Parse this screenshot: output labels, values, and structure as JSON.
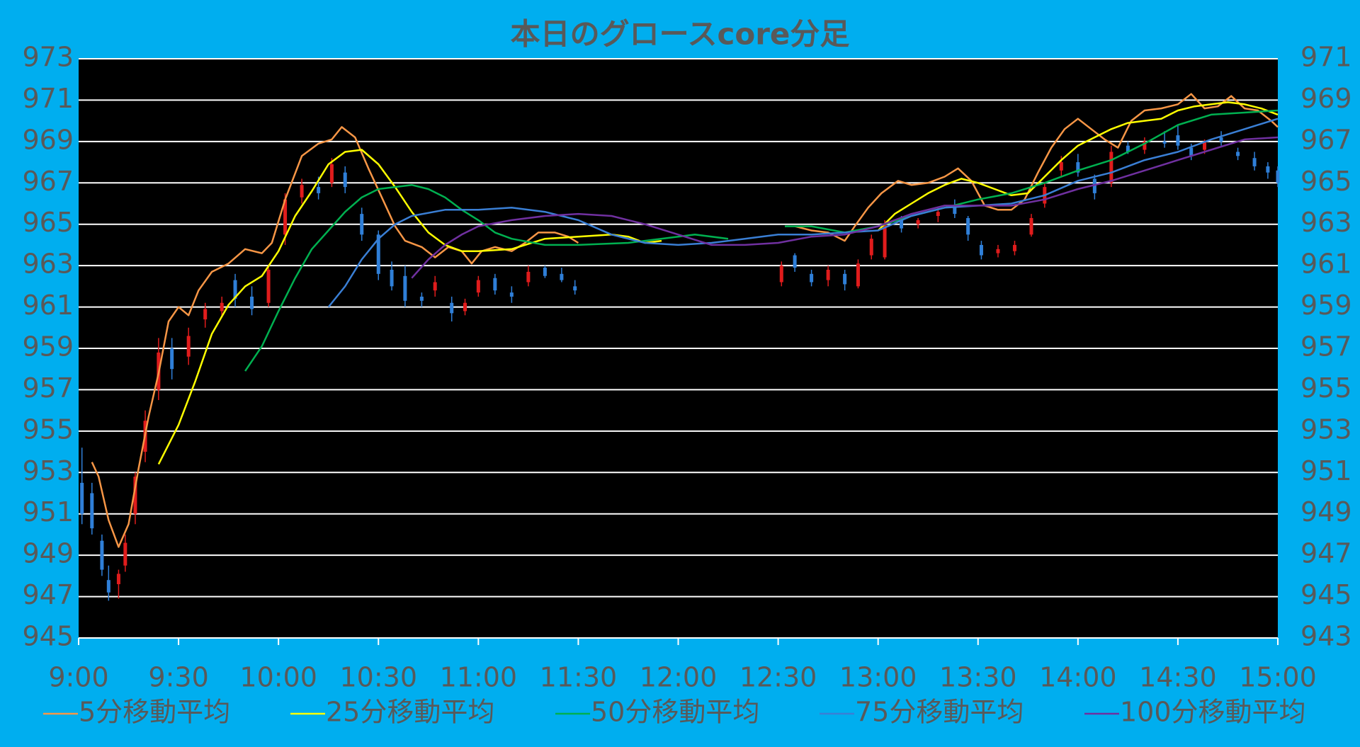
{
  "chart_data": {
    "type": "candlestick",
    "title": "本日のグロースcore分足",
    "xlim": [
      "9:00",
      "15:00"
    ],
    "xticks": [
      "9:00",
      "9:30",
      "10:00",
      "10:30",
      "11:00",
      "11:30",
      "12:00",
      "12:30",
      "13:00",
      "13:30",
      "14:00",
      "14:30",
      "15:00"
    ],
    "ylim": [
      945,
      973
    ],
    "yticks": [
      945,
      947,
      949,
      951,
      953,
      955,
      957,
      959,
      961,
      963,
      965,
      967,
      969,
      971,
      973
    ],
    "y2lim": [
      943,
      971
    ],
    "y2ticks": [
      943,
      945,
      947,
      949,
      951,
      953,
      955,
      957,
      959,
      961,
      963,
      965,
      967,
      969,
      971
    ],
    "grid": true,
    "legend": "bottom",
    "up_color": "#e01c1c",
    "down_color": "#2f7fd8",
    "candles": {
      "x": [
        "9:01",
        "9:04",
        "9:07",
        "9:09",
        "9:12",
        "9:14",
        "9:17",
        "9:20",
        "9:24",
        "9:28",
        "9:33",
        "9:38",
        "9:43",
        "9:47",
        "9:52",
        "9:57",
        "10:02",
        "10:07",
        "10:12",
        "10:16",
        "10:20",
        "10:25",
        "10:30",
        "10:34",
        "10:38",
        "10:43",
        "10:47",
        "10:52",
        "10:56",
        "11:00",
        "11:05",
        "11:10",
        "11:15",
        "11:20",
        "11:25",
        "11:29",
        "12:31",
        "12:35",
        "12:40",
        "12:45",
        "12:50",
        "12:54",
        "12:58",
        "13:02",
        "13:07",
        "13:12",
        "13:18",
        "13:23",
        "13:27",
        "13:31",
        "13:36",
        "13:41",
        "13:46",
        "13:50",
        "13:55",
        "14:00",
        "14:05",
        "14:10",
        "14:15",
        "14:20",
        "14:26",
        "14:30",
        "14:34",
        "14:38",
        "14:43",
        "14:48",
        "14:53",
        "14:57",
        "15:00"
      ],
      "open": [
        952.5,
        952,
        949.7,
        947.8,
        947.6,
        948.5,
        951,
        954,
        957,
        959,
        958.6,
        960.4,
        960.8,
        962.3,
        961.5,
        961.2,
        964.5,
        966.3,
        966.8,
        967,
        967.5,
        965.5,
        964.5,
        962.8,
        962.5,
        961.5,
        961.8,
        961.2,
        960.8,
        961.7,
        962.4,
        961.7,
        962.2,
        962.9,
        962.6,
        962,
        962.2,
        963.5,
        962.6,
        962.3,
        962.6,
        962,
        963.5,
        963.4,
        965.2,
        965,
        965.4,
        965.8,
        965.3,
        964,
        963.6,
        963.7,
        964.5,
        966,
        967.6,
        968,
        967.2,
        967,
        968.8,
        968.6,
        969,
        969.3,
        968.7,
        968.6,
        969.2,
        968.5,
        968.2,
        967.8,
        967.6
      ],
      "high": [
        954.2,
        952.5,
        950,
        948.5,
        948.3,
        950,
        953,
        956,
        959.5,
        959.5,
        960,
        961.2,
        961.5,
        962.6,
        962,
        963,
        966.5,
        967.2,
        967.3,
        968.2,
        967.8,
        965.8,
        964.7,
        963.2,
        963,
        961.7,
        962.5,
        961.5,
        961.4,
        962.5,
        962.6,
        962,
        963,
        963,
        962.9,
        962.3,
        963.2,
        963.6,
        962.8,
        963,
        962.8,
        963.3,
        964.5,
        965.2,
        965.4,
        965.3,
        965.8,
        966.2,
        965.4,
        964.2,
        964,
        964.2,
        965.5,
        967,
        968.3,
        968.4,
        967.4,
        968.8,
        969,
        969.2,
        969.5,
        969.8,
        968.9,
        969.1,
        969.5,
        968.7,
        968.5,
        968,
        967.8
      ],
      "low": [
        950.5,
        950,
        948,
        946.8,
        946.9,
        948.2,
        950.5,
        953.5,
        956.5,
        957.5,
        958.2,
        960,
        960.5,
        961,
        960.6,
        961,
        964,
        966,
        966.2,
        966.8,
        966.5,
        964.2,
        962.3,
        961.8,
        961,
        961,
        961.5,
        960.3,
        960.6,
        961.5,
        961.6,
        961.2,
        962,
        962.4,
        962.2,
        961.6,
        962,
        962.7,
        962,
        962,
        961.8,
        961.9,
        963.3,
        963.3,
        964.6,
        964.8,
        965.1,
        965.3,
        964.2,
        963.3,
        963.4,
        963.5,
        964.4,
        965.8,
        967.3,
        967.3,
        966.2,
        966.8,
        968.4,
        968.4,
        968.7,
        968.6,
        968.1,
        968.4,
        968.8,
        968.1,
        967.6,
        967.2,
        966.8
      ],
      "close": [
        951,
        950.3,
        948.3,
        947.2,
        948.1,
        949.6,
        952.8,
        955.5,
        958.8,
        958,
        959.6,
        960.9,
        961.2,
        961.4,
        960.9,
        962.8,
        966.2,
        966.9,
        966.5,
        967.9,
        966.8,
        964.5,
        962.6,
        962,
        961.3,
        961.3,
        962.2,
        960.7,
        961.2,
        962.3,
        961.8,
        961.5,
        962.7,
        962.5,
        962.3,
        961.8,
        963,
        962.9,
        962.2,
        962.8,
        962.1,
        963.1,
        964.3,
        965,
        964.8,
        965.2,
        965.6,
        965.5,
        964.5,
        963.5,
        963.8,
        964,
        965.3,
        966.8,
        968,
        967.5,
        966.5,
        968.5,
        968.5,
        969,
        968.9,
        968.8,
        968.3,
        969,
        969,
        968.3,
        967.8,
        967.5,
        967
      ]
    },
    "series": [
      {
        "name": "5分移動平均",
        "color": "#f79646",
        "x": [
          "9:04",
          "9:06",
          "9:09",
          "9:12",
          "9:15",
          "9:18",
          "9:21",
          "9:24",
          "9:27",
          "9:30",
          "9:33",
          "9:36",
          "9:40",
          "9:45",
          "9:50",
          "9:55",
          "9:58",
          "10:02",
          "10:07",
          "10:12",
          "10:16",
          "10:19",
          "10:23",
          "10:27",
          "10:31",
          "10:35",
          "10:38",
          "10:43",
          "10:47",
          "10:51",
          "10:55",
          "10:58",
          "11:01",
          "11:05",
          "11:10",
          "11:14",
          "11:18",
          "11:23",
          "11:27",
          "11:30",
          "12:00",
          "12:35",
          "12:40",
          "12:45",
          "12:50",
          "12:53",
          "12:57",
          "13:01",
          "13:06",
          "13:10",
          "13:15",
          "13:20",
          "13:24",
          "13:28",
          "13:32",
          "13:36",
          "13:40",
          "13:44",
          "13:48",
          "13:52",
          "13:56",
          "14:00",
          "14:04",
          "14:08",
          "14:12",
          "14:16",
          "14:20",
          "14:25",
          "14:30",
          "14:34",
          "14:38",
          "14:42",
          "14:46",
          "14:50",
          "14:54",
          "14:58",
          "15:00"
        ],
        "values": [
          953.5,
          952.8,
          950.7,
          949.4,
          950.5,
          953.2,
          955.7,
          957.8,
          960.3,
          961,
          960.6,
          961.8,
          962.7,
          963.1,
          963.8,
          963.6,
          964.1,
          966.2,
          968.3,
          968.9,
          969.1,
          969.7,
          969.2,
          967.7,
          966.3,
          964.9,
          964.2,
          963.9,
          963.4,
          963.9,
          963.7,
          963.1,
          963.7,
          963.9,
          963.7,
          964.1,
          964.6,
          964.6,
          964.4,
          964.1,
          null,
          964.9,
          964.7,
          964.6,
          964.2,
          964.9,
          965.8,
          966.5,
          967.1,
          966.9,
          967,
          967.3,
          967.7,
          967.1,
          965.9,
          965.7,
          965.7,
          966.2,
          967.5,
          968.7,
          969.6,
          970.1,
          969.6,
          969.1,
          968.7,
          970,
          970.5,
          970.6,
          970.8,
          971.3,
          970.6,
          970.7,
          971.2,
          970.6,
          970.5,
          970,
          969.7
        ]
      },
      {
        "name": "25分移動平均",
        "color": "#ffff00",
        "x": [
          "9:24",
          "9:30",
          "9:35",
          "9:40",
          "9:45",
          "9:50",
          "9:55",
          "10:00",
          "10:05",
          "10:10",
          "10:15",
          "10:20",
          "10:25",
          "10:30",
          "10:35",
          "10:40",
          "10:45",
          "10:50",
          "10:55",
          "11:00",
          "11:10",
          "11:20",
          "11:30",
          "11:40",
          "11:45",
          "11:50",
          "11:55",
          "12:30",
          "13:00",
          "13:05",
          "13:10",
          "13:15",
          "13:20",
          "13:25",
          "13:30",
          "13:35",
          "13:40",
          "13:45",
          "13:50",
          "13:55",
          "14:00",
          "14:05",
          "14:10",
          "14:15",
          "14:20",
          "14:25",
          "14:30",
          "14:35",
          "14:40",
          "14:45",
          "14:50",
          "14:55",
          "15:00"
        ],
        "values": [
          953.4,
          955.3,
          957.4,
          959.7,
          961.1,
          962,
          962.5,
          963.7,
          965.4,
          966.6,
          967.9,
          968.5,
          968.6,
          967.9,
          966.8,
          965.6,
          964.6,
          964,
          963.7,
          963.7,
          963.8,
          964.3,
          964.4,
          964.5,
          964.4,
          964.1,
          964.2,
          null,
          964.7,
          965.5,
          966,
          966.5,
          966.9,
          967.2,
          967,
          966.7,
          966.4,
          966.5,
          967.3,
          968.1,
          968.8,
          969.2,
          969.6,
          969.9,
          970,
          970.1,
          970.5,
          970.7,
          970.8,
          970.9,
          970.8,
          970.6,
          970.3
        ]
      },
      {
        "name": "50分移動平均",
        "color": "#00b050",
        "x": [
          "9:50",
          "9:55",
          "10:00",
          "10:05",
          "10:10",
          "10:15",
          "10:20",
          "10:25",
          "10:30",
          "10:40",
          "10:45",
          "10:50",
          "10:55",
          "11:00",
          "11:05",
          "11:10",
          "11:20",
          "11:30",
          "11:45",
          "12:00",
          "12:05",
          "12:15",
          "12:25",
          "12:32",
          "12:40",
          "12:50",
          "13:00",
          "13:10",
          "13:20",
          "13:30",
          "13:40",
          "13:50",
          "14:00",
          "14:10",
          "14:20",
          "14:30",
          "14:40",
          "14:50",
          "15:00"
        ],
        "values": [
          957.9,
          959.1,
          960.8,
          962.4,
          963.8,
          964.7,
          965.6,
          966.3,
          966.7,
          966.9,
          966.7,
          966.3,
          965.7,
          965.2,
          964.6,
          964.3,
          964,
          964,
          964.1,
          964.4,
          964.5,
          964.3,
          null,
          964.9,
          964.9,
          964.6,
          964.9,
          965.4,
          965.8,
          966.2,
          966.5,
          967,
          967.6,
          968.1,
          968.9,
          969.8,
          970.3,
          970.4,
          970.5
        ]
      },
      {
        "name": "75分移動平均",
        "color": "#3a7fd5",
        "x": [
          "10:15",
          "10:20",
          "10:25",
          "10:30",
          "10:35",
          "10:40",
          "10:50",
          "11:00",
          "11:10",
          "11:20",
          "11:30",
          "11:40",
          "11:50",
          "12:00",
          "12:10",
          "12:20",
          "12:30",
          "12:40",
          "12:50",
          "13:00",
          "13:10",
          "13:20",
          "13:30",
          "13:40",
          "13:50",
          "14:00",
          "14:10",
          "14:20",
          "14:30",
          "14:40",
          "14:50",
          "15:00"
        ],
        "values": [
          961,
          962,
          963.3,
          964.3,
          965,
          965.4,
          965.7,
          965.7,
          965.8,
          965.6,
          965.2,
          964.5,
          964.1,
          964,
          964.1,
          964.3,
          964.5,
          964.5,
          964.6,
          964.7,
          965.4,
          965.8,
          965.9,
          966,
          966.4,
          967.1,
          967.5,
          968.1,
          968.5,
          969.1,
          969.6,
          970.1
        ]
      },
      {
        "name": "100分移動平均",
        "color": "#7030a0",
        "x": [
          "10:40",
          "10:45",
          "10:50",
          "10:55",
          "11:00",
          "11:10",
          "11:20",
          "11:30",
          "11:40",
          "11:50",
          "12:00",
          "12:10",
          "12:20",
          "12:30",
          "12:40",
          "12:50",
          "13:00",
          "13:10",
          "13:20",
          "13:30",
          "13:40",
          "13:50",
          "14:00",
          "14:10",
          "14:20",
          "14:30",
          "14:40",
          "14:50",
          "15:00"
        ],
        "values": [
          962.4,
          963.3,
          964,
          964.5,
          964.9,
          965.2,
          965.4,
          965.5,
          965.4,
          965,
          964.5,
          964,
          964,
          964.1,
          964.4,
          964.5,
          964.9,
          965.5,
          965.9,
          965.9,
          965.9,
          966.2,
          966.7,
          967.1,
          967.6,
          968.1,
          968.6,
          969.1,
          969.2
        ]
      }
    ]
  }
}
